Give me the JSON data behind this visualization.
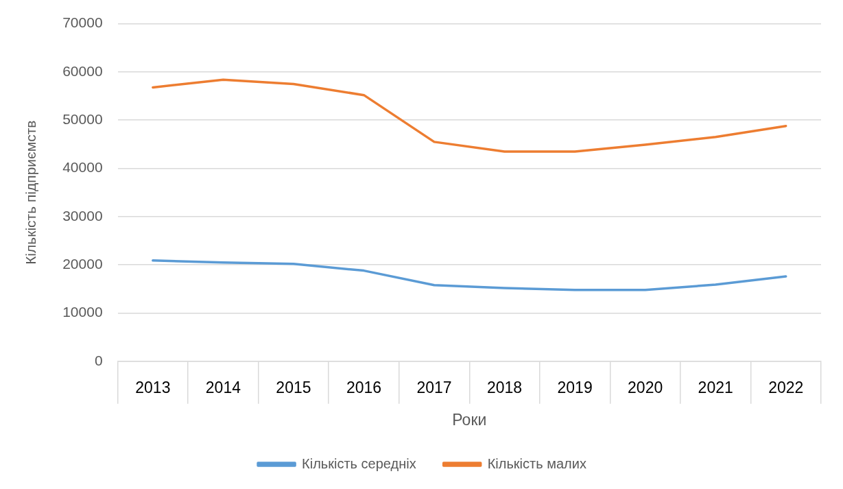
{
  "chart_data": {
    "type": "line",
    "xlabel": "Роки",
    "ylabel": "Кількість підприємств",
    "categories": [
      "2013",
      "2014",
      "2015",
      "2016",
      "2017",
      "2018",
      "2019",
      "2020",
      "2021",
      "2022"
    ],
    "ylim": [
      0,
      70000
    ],
    "yticks": [
      0,
      10000,
      20000,
      30000,
      40000,
      50000,
      60000,
      70000
    ],
    "grid": "y",
    "legend": "bottom",
    "marker": "none",
    "line_style": "solid",
    "series": [
      {
        "name": "Кількість середніх",
        "color": "#5b9bd5",
        "values": [
          20900,
          20500,
          20200,
          18800,
          15800,
          15200,
          14800,
          14800,
          15900,
          17600
        ]
      },
      {
        "name": "Кількість малих",
        "color": "#ed7d31",
        "values": [
          56800,
          58400,
          57500,
          55200,
          45500,
          43500,
          43500,
          44900,
          46500,
          48800
        ]
      }
    ]
  }
}
